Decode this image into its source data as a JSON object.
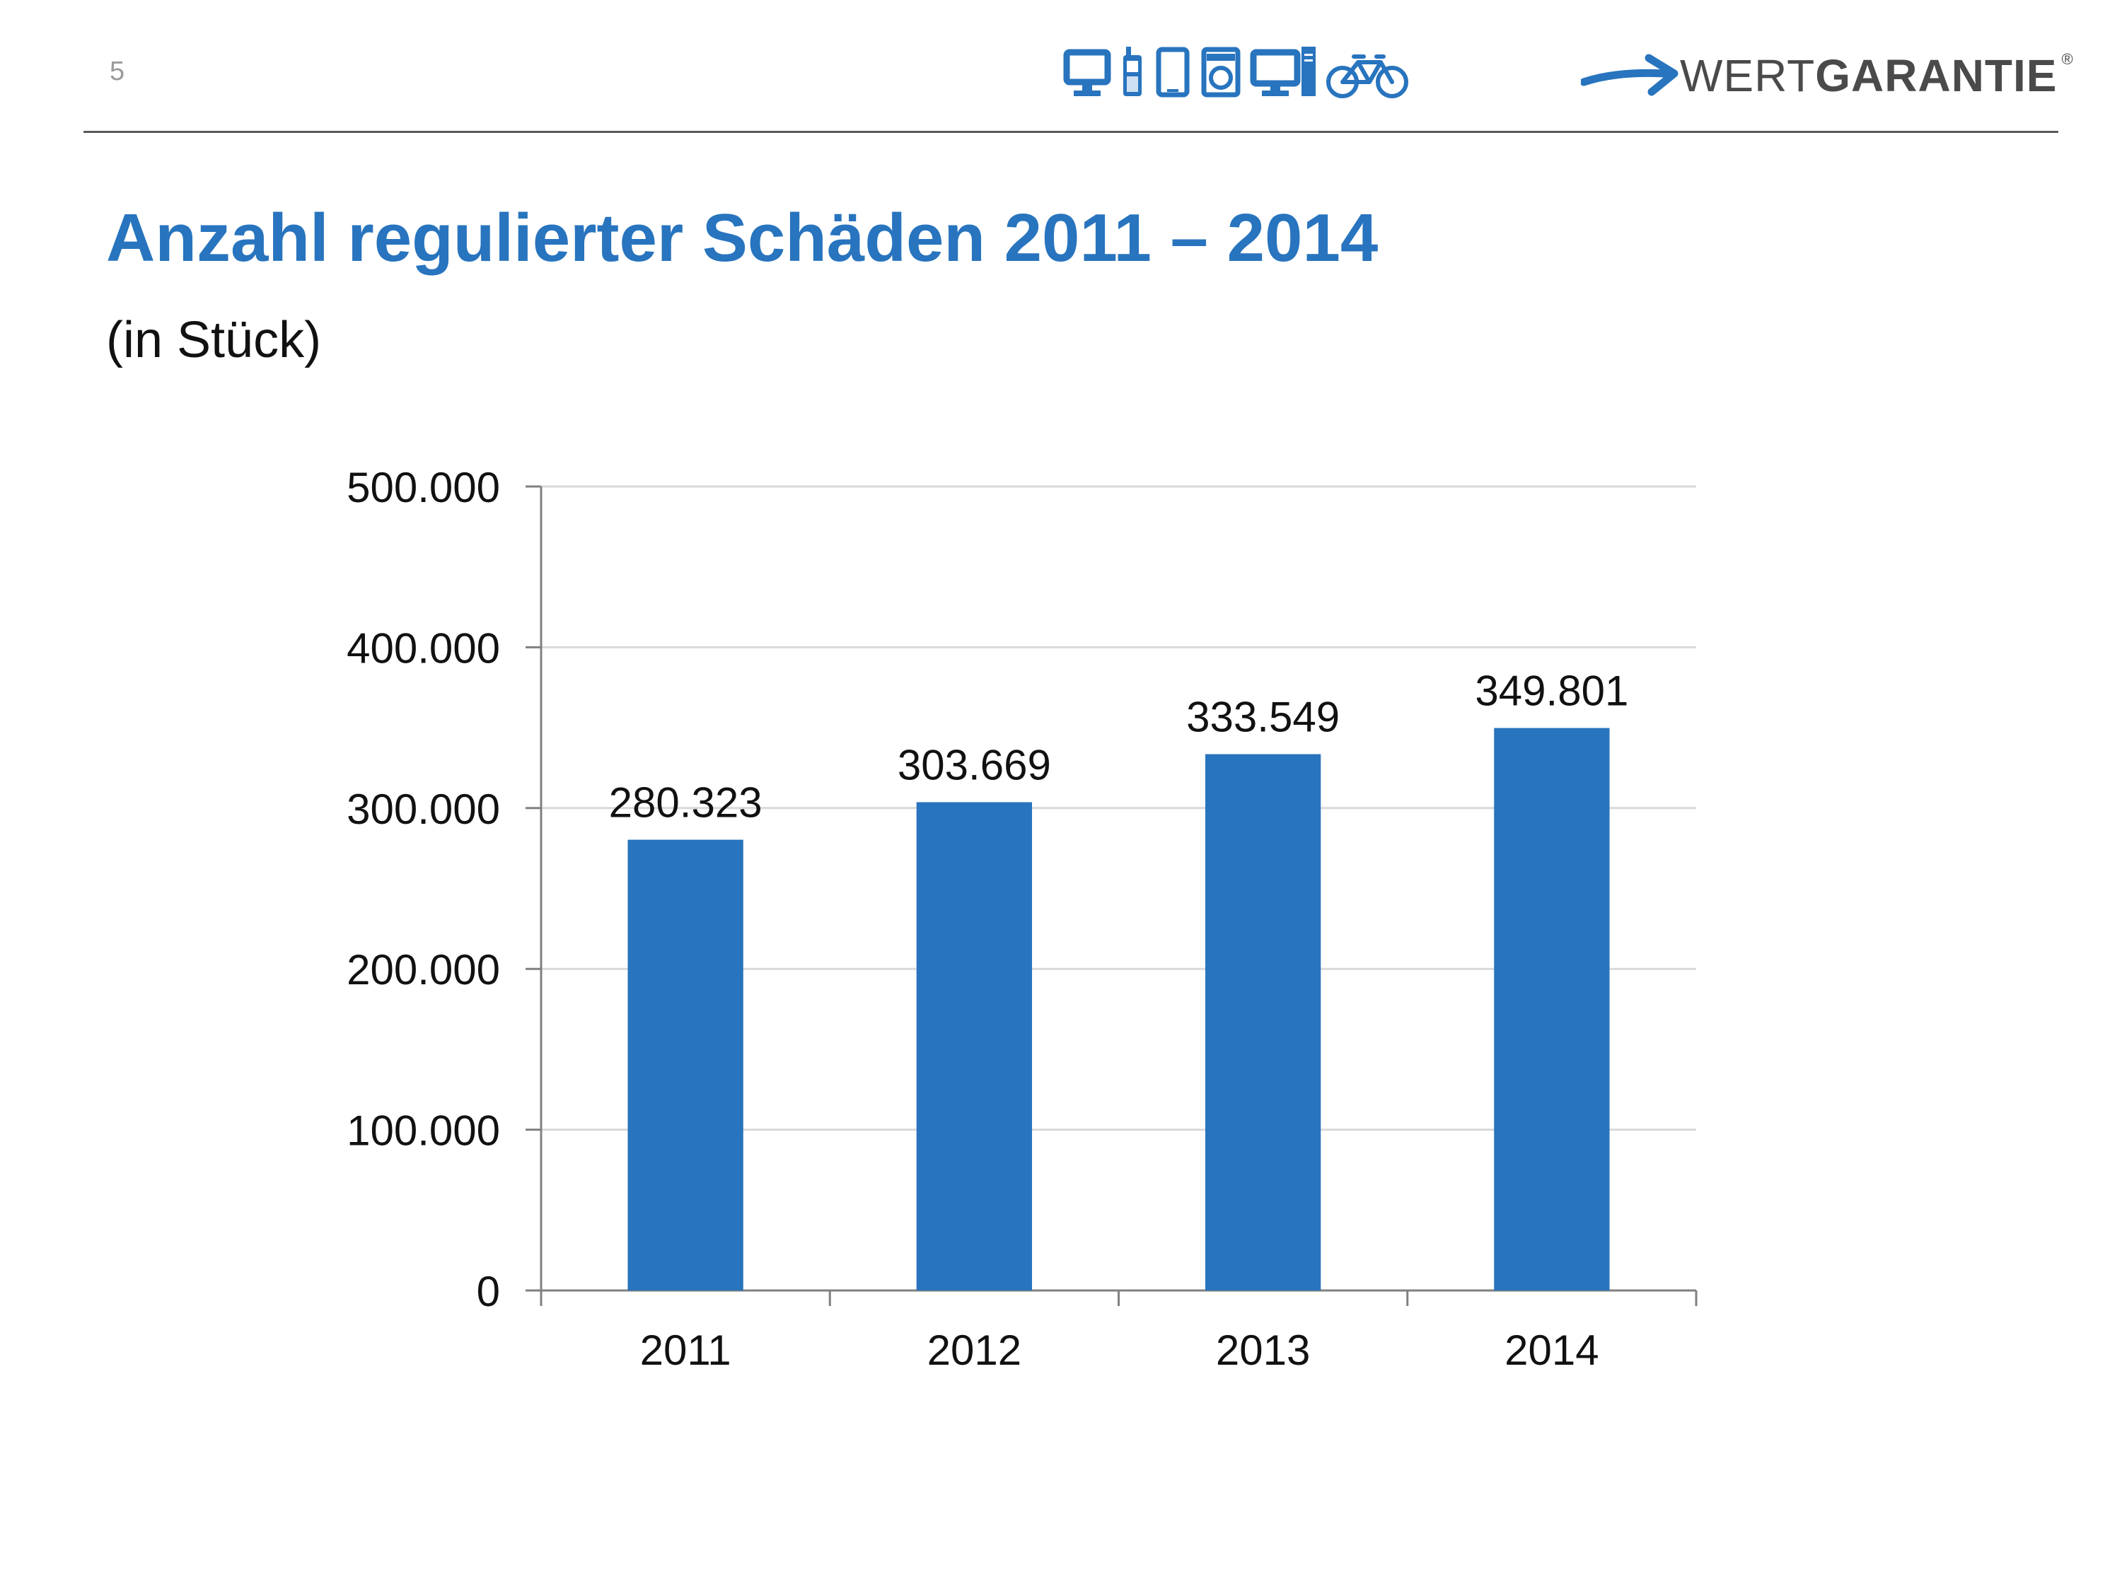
{
  "page": {
    "number": "5",
    "title": "Anzahl regulierter Schäden 2011 – 2014",
    "subtitle": "(in Stück)"
  },
  "header": {
    "icons": [
      "monitor-icon",
      "mobile-phone-icon",
      "tablet-icon",
      "washing-machine-icon",
      "desktop-computer-icon",
      "bicycle-icon"
    ],
    "logo": {
      "word_light": "WERT",
      "word_bold": "GARANTIE",
      "registered": "®",
      "icon": "arrow-icon"
    }
  },
  "colors": {
    "accent": "#2874be",
    "bar": "#2874be",
    "grid": "#d9d9d9",
    "axis": "#808080",
    "text": "#111111"
  },
  "chart_data": {
    "type": "bar",
    "categories": [
      "2011",
      "2012",
      "2013",
      "2014"
    ],
    "values": [
      280323,
      303669,
      333549,
      349801
    ],
    "value_labels": [
      "280.323",
      "303.669",
      "333.549",
      "349.801"
    ],
    "ylim": [
      0,
      500000
    ],
    "yticks": [
      0,
      100000,
      200000,
      300000,
      400000,
      500000
    ],
    "ytick_labels": [
      "0",
      "100.000",
      "200.000",
      "300.000",
      "400.000",
      "500.000"
    ],
    "grid": true,
    "legend": "none"
  }
}
